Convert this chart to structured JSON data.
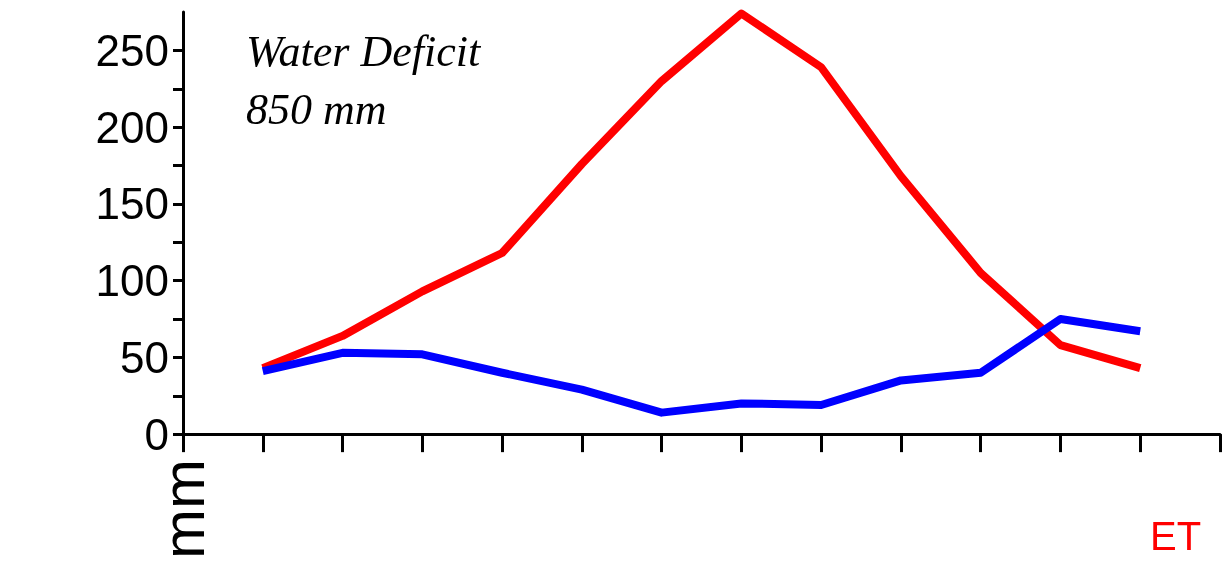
{
  "chart_data": {
    "type": "line",
    "ylabel": "mm",
    "annotations": [
      "Water Deficit\n850 mm",
      "ET"
    ],
    "categories": [
      null,
      null,
      null,
      null,
      null,
      null,
      null,
      null,
      null,
      null,
      null,
      null,
      null,
      null
    ],
    "series": [
      {
        "color": "#ff0000",
        "values": [
          null,
          43,
          64,
          93,
          118,
          176,
          230,
          274,
          239,
          168,
          105,
          58,
          43,
          null
        ]
      },
      {
        "color": "#0000ff",
        "values": [
          null,
          41,
          53,
          52,
          40,
          29,
          14,
          20,
          19,
          35,
          40,
          75,
          67,
          null
        ]
      }
    ],
    "ylim": [
      0,
      275
    ],
    "yticks": [
      0,
      {
        "value": 25,
        "label": null
      },
      50,
      {
        "value": 75,
        "label": null
      },
      100,
      {
        "value": 125,
        "label": null
      },
      150,
      {
        "value": 175,
        "label": null
      },
      200,
      {
        "value": 225,
        "label": null
      },
      250
    ],
    "grid": false,
    "marker": "none",
    "line_style": "solid",
    "tick_labels": "y"
  }
}
